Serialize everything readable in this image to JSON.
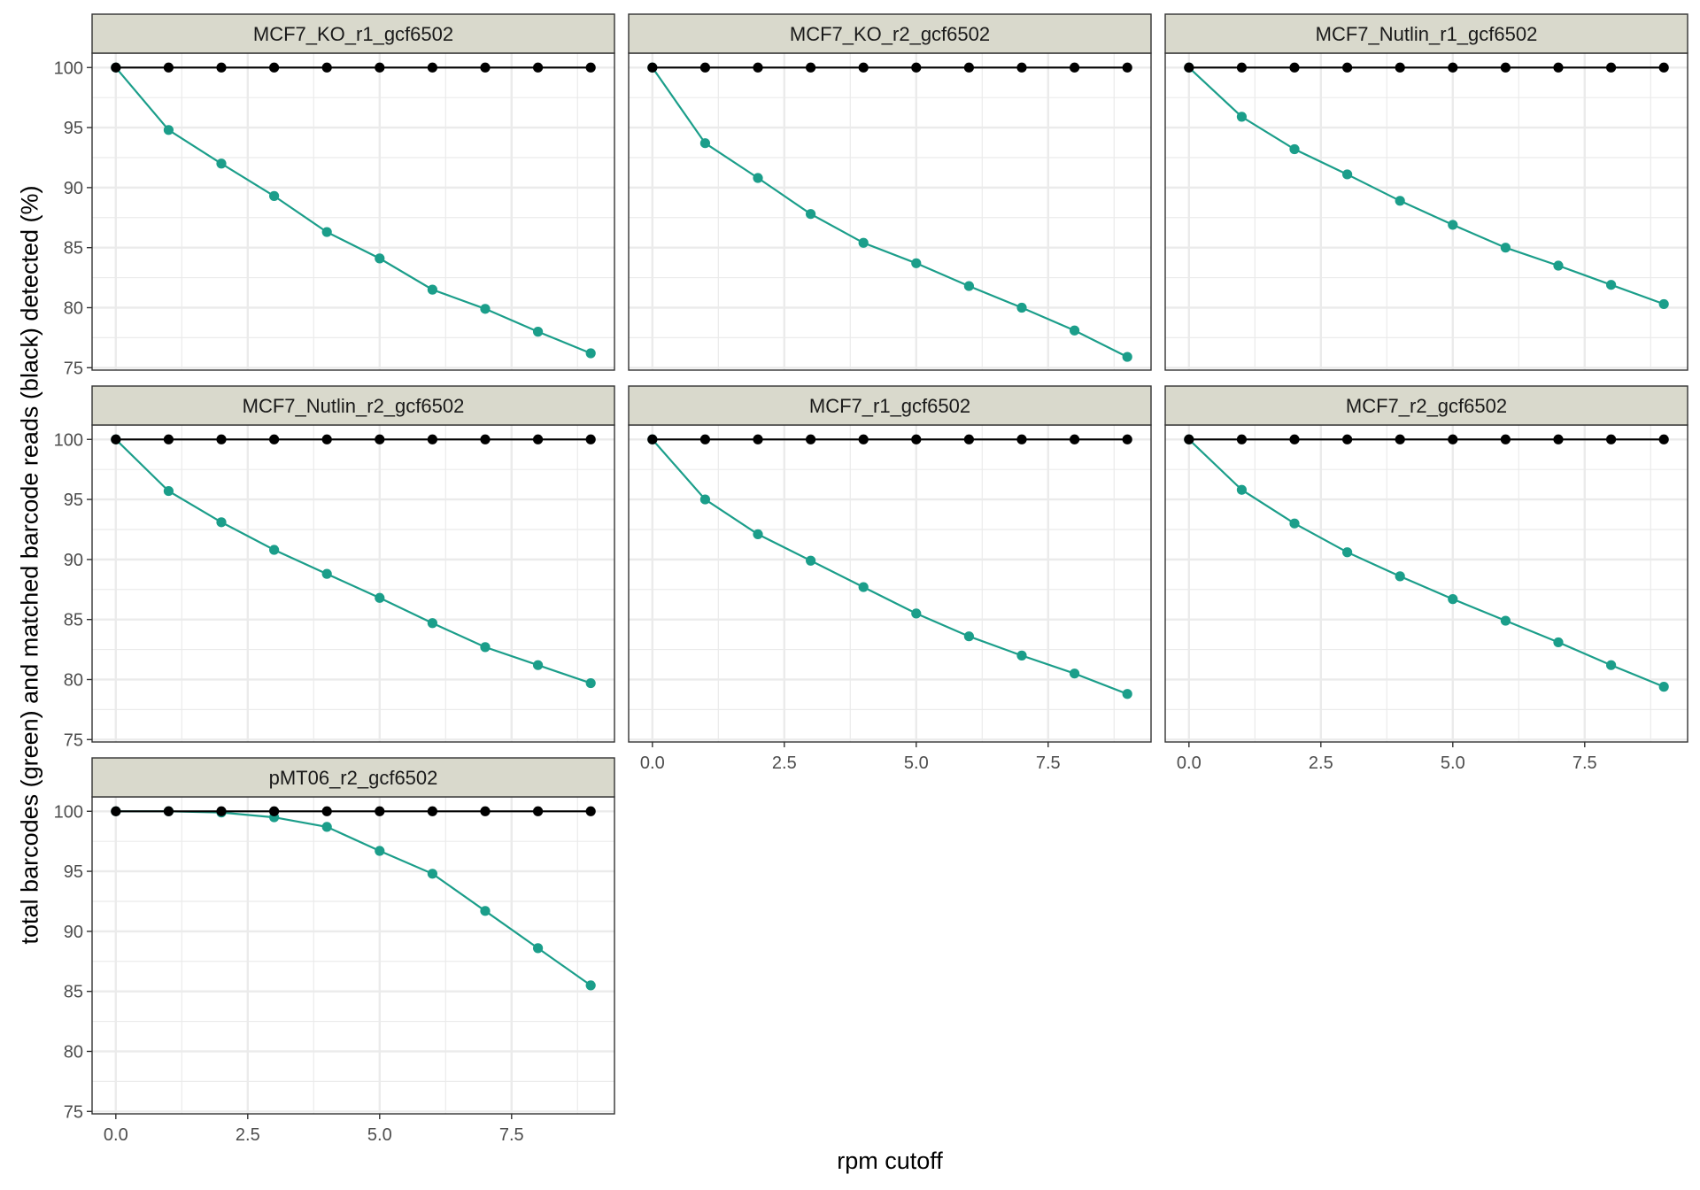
{
  "chart_data": {
    "type": "line",
    "layout": "facet-grid",
    "xlabel": "rpm cutoff",
    "ylabel": "total barcodes (green) and matched barcode reads (black) detected (%)",
    "xlim": [
      -0.45,
      9.45
    ],
    "ylim": [
      74.8,
      101.2
    ],
    "x_ticks": [
      0,
      2.5,
      5,
      7.5
    ],
    "x_tick_labels": [
      "0.0",
      "2.5",
      "5.0",
      "7.5"
    ],
    "y_ticks": [
      75,
      80,
      85,
      90,
      95,
      100
    ],
    "y_tick_labels": [
      "75",
      "80",
      "85",
      "90",
      "95",
      "100"
    ],
    "grid": true,
    "legend": "none",
    "colors": {
      "total_barcodes": "#1b9e8a",
      "matched_reads": "#000000",
      "strip_fill": "#d9d9cc",
      "grid": "#ebebeb",
      "panel_border": "#333333"
    },
    "x": [
      0,
      1,
      2,
      3,
      4,
      5,
      6,
      7,
      8,
      9
    ],
    "panels": [
      {
        "title": "MCF7_KO_r1_gcf6502",
        "series": [
          {
            "color": "#1b9e8a",
            "values": [
              100,
              94.8,
              92.0,
              89.3,
              86.3,
              84.1,
              81.5,
              79.9,
              78.0,
              76.2
            ]
          },
          {
            "color": "#000000",
            "values": [
              100,
              100,
              100,
              100,
              100,
              100,
              100,
              100,
              100,
              100
            ]
          }
        ]
      },
      {
        "title": "MCF7_KO_r2_gcf6502",
        "series": [
          {
            "color": "#1b9e8a",
            "values": [
              100,
              93.7,
              90.8,
              87.8,
              85.4,
              83.7,
              81.8,
              80.0,
              78.1,
              75.9
            ]
          },
          {
            "color": "#000000",
            "values": [
              100,
              100,
              100,
              100,
              100,
              100,
              100,
              100,
              100,
              100
            ]
          }
        ]
      },
      {
        "title": "MCF7_Nutlin_r1_gcf6502",
        "series": [
          {
            "color": "#1b9e8a",
            "values": [
              100,
              95.9,
              93.2,
              91.1,
              88.9,
              86.9,
              85.0,
              83.5,
              81.9,
              80.3
            ]
          },
          {
            "color": "#000000",
            "values": [
              100,
              100,
              100,
              100,
              100,
              100,
              100,
              100,
              100,
              100
            ]
          }
        ]
      },
      {
        "title": "MCF7_Nutlin_r2_gcf6502",
        "series": [
          {
            "color": "#1b9e8a",
            "values": [
              100,
              95.7,
              93.1,
              90.8,
              88.8,
              86.8,
              84.7,
              82.7,
              81.2,
              79.7
            ]
          },
          {
            "color": "#000000",
            "values": [
              100,
              100,
              100,
              100,
              100,
              100,
              100,
              100,
              100,
              100
            ]
          }
        ]
      },
      {
        "title": "MCF7_r1_gcf6502",
        "series": [
          {
            "color": "#1b9e8a",
            "values": [
              100,
              95.0,
              92.1,
              89.9,
              87.7,
              85.5,
              83.6,
              82.0,
              80.5,
              78.8
            ]
          },
          {
            "color": "#000000",
            "values": [
              100,
              100,
              100,
              100,
              100,
              100,
              100,
              100,
              100,
              100
            ]
          }
        ]
      },
      {
        "title": "MCF7_r2_gcf6502",
        "series": [
          {
            "color": "#1b9e8a",
            "values": [
              100,
              95.8,
              93.0,
              90.6,
              88.6,
              86.7,
              84.9,
              83.1,
              81.2,
              79.4
            ]
          },
          {
            "color": "#000000",
            "values": [
              100,
              100,
              100,
              100,
              100,
              100,
              100,
              100,
              100,
              100
            ]
          }
        ]
      },
      {
        "title": "pMT06_r2_gcf6502",
        "series": [
          {
            "color": "#1b9e8a",
            "values": [
              100,
              100,
              99.9,
              99.5,
              98.7,
              96.7,
              94.8,
              91.7,
              88.6,
              85.5
            ]
          },
          {
            "color": "#000000",
            "values": [
              100,
              100,
              100,
              100,
              100,
              100,
              100,
              100,
              100,
              100
            ]
          }
        ]
      }
    ]
  }
}
